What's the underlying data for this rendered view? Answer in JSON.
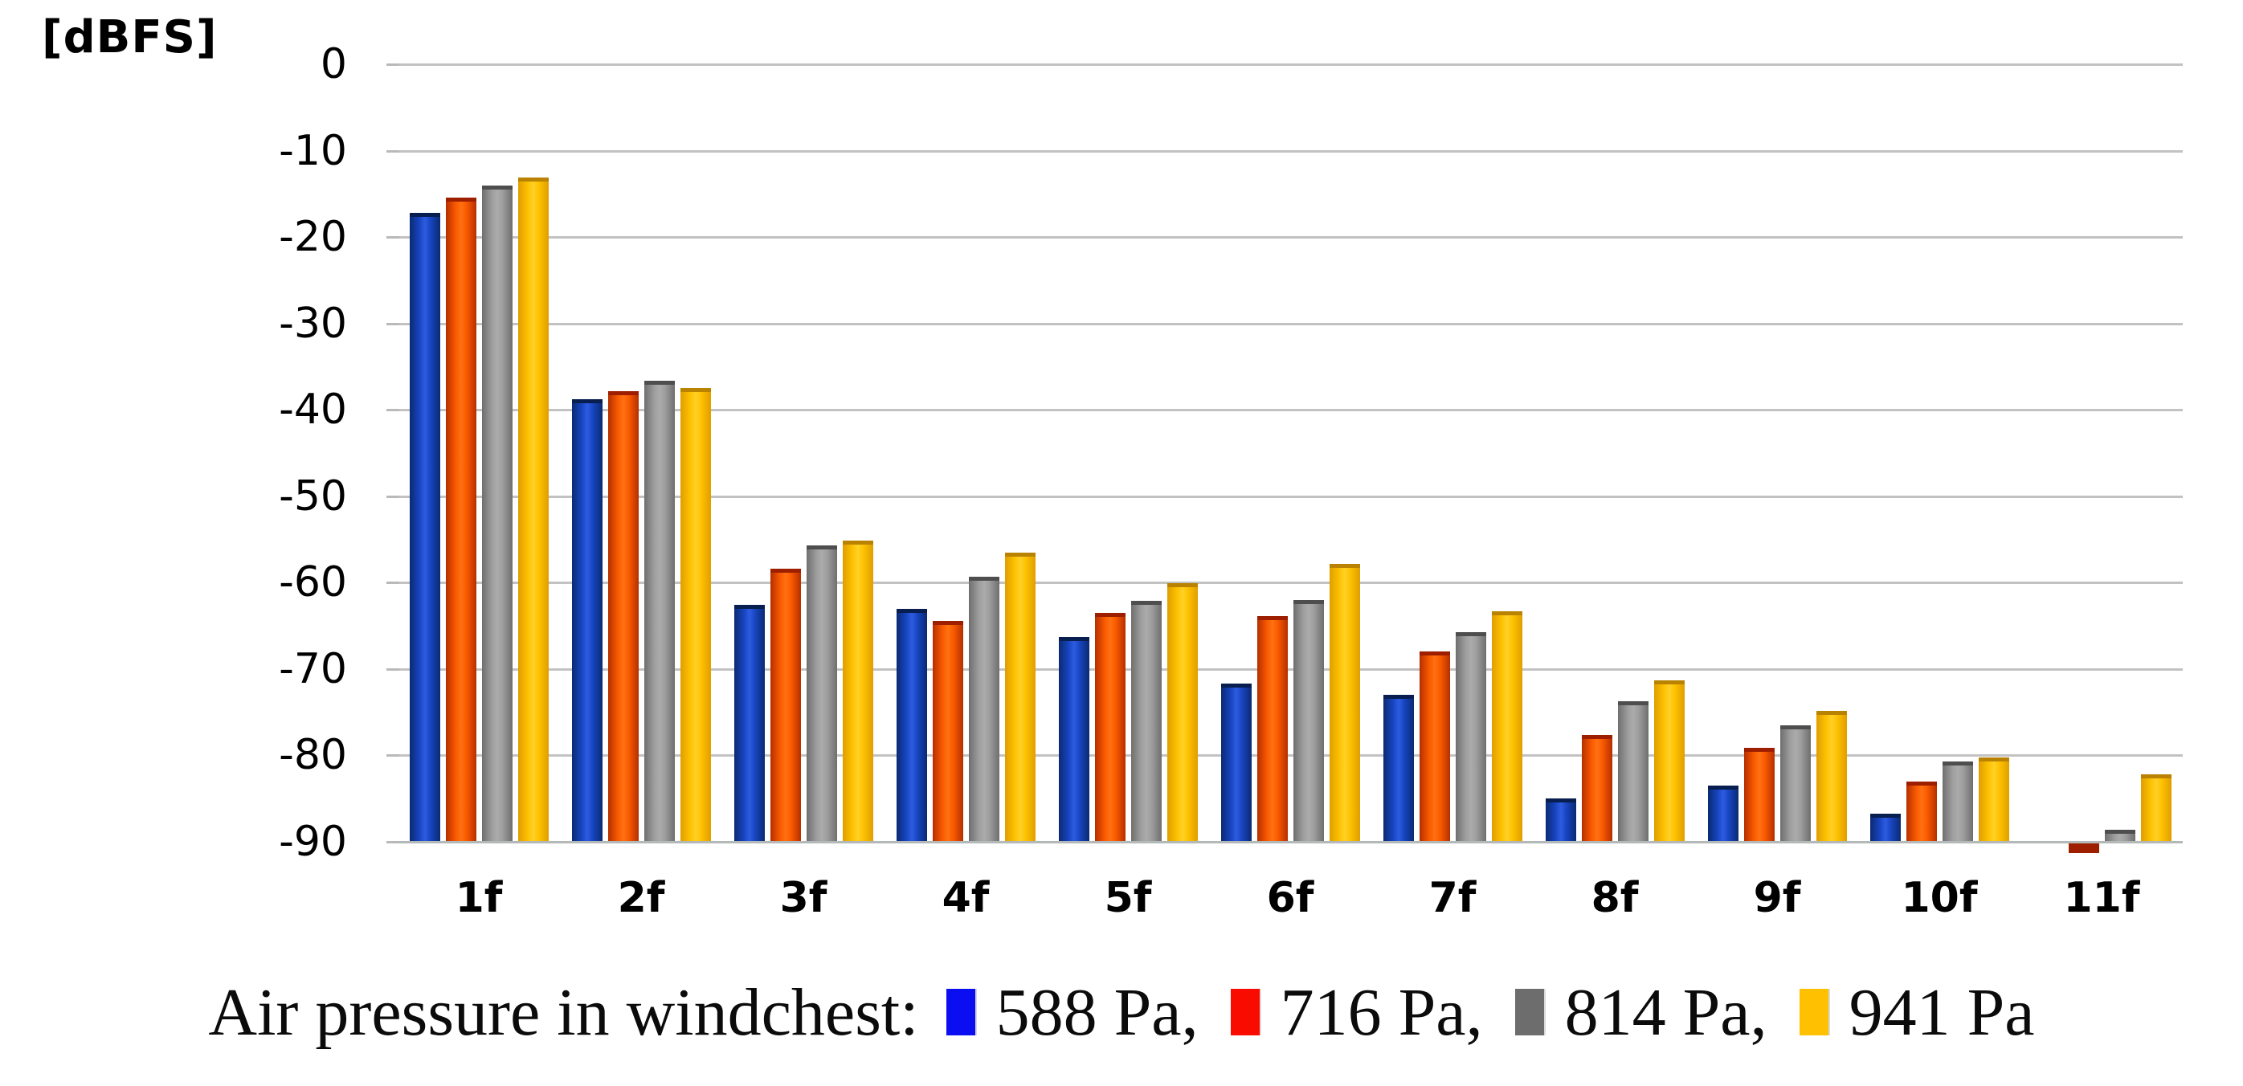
{
  "axis_unit_label": "[dBFS]",
  "chart_data": {
    "type": "bar",
    "title": "",
    "ylabel": "[dBFS]",
    "xlabel": "",
    "categories": [
      "1f",
      "2f",
      "3f",
      "4f",
      "5f",
      "6f",
      "7f",
      "8f",
      "9f",
      "10f",
      "11f"
    ],
    "ylim": [
      -90,
      0
    ],
    "yticks": [
      0,
      -10,
      -20,
      -30,
      -40,
      -50,
      -60,
      -70,
      -80,
      -90
    ],
    "grid": true,
    "grid_color": "#c2c2c2",
    "baseline_color": "#b3b9b9",
    "legend_position": "bottom",
    "legend_prefix": "Air pressure in windchest:",
    "series": [
      {
        "name": "588 Pa",
        "legend_label": "588 Pa,",
        "legend_color": "#0a0ef0",
        "bar_edge": "#0a2a72",
        "bar_mid": "#1845c0",
        "bar_highlight": "#2d5ce0",
        "bar_cap": "#071e4e",
        "values": [
          -17.2,
          -38.8,
          -62.6,
          -63.0,
          -66.3,
          -71.7,
          -73.0,
          -85.0,
          -83.5,
          -86.7,
          null
        ]
      },
      {
        "name": "716 Pa",
        "legend_label": "716 Pa,",
        "legend_color": "#f90b00",
        "bar_edge": "#b52f00",
        "bar_mid": "#f95a00",
        "bar_highlight": "#ff7112",
        "bar_cap": "#9e1e00",
        "values": [
          -15.4,
          -37.8,
          -58.4,
          -64.4,
          -63.5,
          -63.9,
          -68.0,
          -77.6,
          -79.1,
          -83.0,
          -90.7
        ]
      },
      {
        "name": "814 Pa",
        "legend_label": "814 Pa,",
        "legend_color": "#6d6d6d",
        "bar_edge": "#6e6e6e",
        "bar_mid": "#9d9d9d",
        "bar_highlight": "#ababab",
        "bar_cap": "#4e4e4e",
        "values": [
          -14.0,
          -36.6,
          -55.7,
          -59.3,
          -62.1,
          -62.0,
          -65.7,
          -73.7,
          -76.5,
          -80.7,
          -88.6
        ]
      },
      {
        "name": "941 Pa",
        "legend_label": "941 Pa",
        "legend_color": "#fec001",
        "bar_edge": "#e09e00",
        "bar_mid": "#fdc200",
        "bar_highlight": "#ffd028",
        "bar_cap": "#b98200",
        "values": [
          -13.1,
          -37.5,
          -55.1,
          -56.5,
          -60.1,
          -57.8,
          -63.3,
          -71.3,
          -74.8,
          -80.2,
          -82.2
        ]
      }
    ]
  }
}
